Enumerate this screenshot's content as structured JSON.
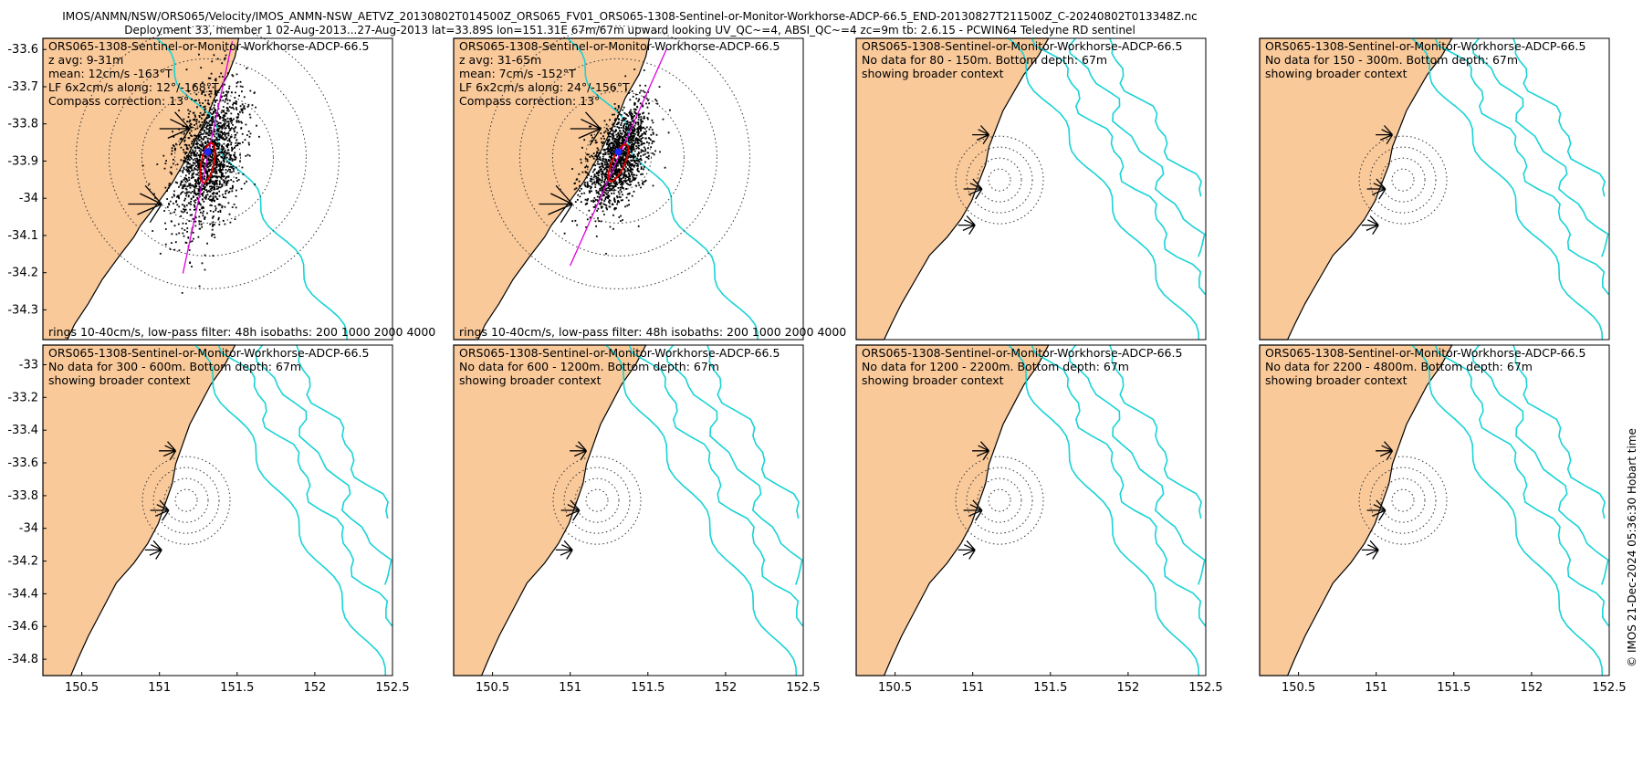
{
  "header": {
    "line1": "IMOS/ANMN/NSW/ORS065/Velocity/IMOS_ANMN-NSW_AETVZ_20130802T014500Z_ORS065_FV01_ORS065-1308-Sentinel-or-Monitor-Workhorse-ADCP-66.5_END-20130827T211500Z_C-20240802T013348Z.nc",
    "line2": "Deployment 33, member 1 02-Aug-2013...27-Aug-2013 lat=33.89S lon=151.31E 67m/67m upward looking UV_QC~=4, ABSI_QC~=4 zc=9m tb: 2.6.15 - PCWIN64 Teledyne RD sentinel"
  },
  "copyright": "© IMOS 21-Dec-2024 05:36:30 Hobart time",
  "colors": {
    "land": "#f9c99a",
    "isobath": "#19d3d6",
    "scatter": "#000000",
    "principal_axis": "#e000e0",
    "ellipse": "#e00000",
    "mean": "#1a2bff",
    "rings": "#333333"
  },
  "chart_data": [
    {
      "type": "scatter",
      "panel": "top-1",
      "title": "ORS065-1308-Sentinel-or-Monitor-Workhorse-ADCP-66.5",
      "info": [
        "z avg: 9-31m",
        "mean: 12cm/s -163°T",
        "LF 6x2cm/s along: 12°/-168°T",
        "Compass correction: 13°"
      ],
      "footer": "rings 10-40cm/s, low-pass filter: 48h isobaths: 200 1000 2000 4000",
      "yticks": [
        -33.6,
        -33.7,
        -33.8,
        -33.9,
        -34,
        -34.1,
        -34.2,
        -34.3
      ],
      "ylim": [
        -34.38,
        -33.57
      ],
      "xlim": [
        150.25,
        152.5
      ],
      "site": [
        151.31,
        -33.89
      ],
      "rings_cm_s": [
        10,
        20,
        30,
        40
      ],
      "axis_bearing_deg": 12,
      "mean_cm_s": 12,
      "mean_dir_deg": -163,
      "depth": "9-31m"
    },
    {
      "type": "scatter",
      "panel": "top-2",
      "title": "ORS065-1308-Sentinel-or-Monitor-Workhorse-ADCP-66.5",
      "info": [
        "z avg: 31-65m",
        "mean: 7cm/s -152°T",
        "LF 6x2cm/s along: 24°/-156°T",
        "Compass correction: 13°"
      ],
      "footer": "rings 10-40cm/s, low-pass filter: 48h isobaths: 200 1000 2000 4000",
      "ylim": [
        -34.38,
        -33.57
      ],
      "xlim": [
        150.25,
        152.5
      ],
      "site": [
        151.31,
        -33.89
      ],
      "rings_cm_s": [
        10,
        20,
        30,
        40
      ],
      "axis_bearing_deg": 24,
      "mean_cm_s": 7,
      "mean_dir_deg": -152,
      "depth": "31-65m"
    },
    {
      "type": "map",
      "panel": "top-3",
      "title": "ORS065-1308-Sentinel-or-Monitor-Workhorse-ADCP-66.5",
      "info": [
        "No data for 80 - 150m. Bottom depth: 67m",
        "showing broader context"
      ],
      "range": "80 - 150m"
    },
    {
      "type": "map",
      "panel": "top-4",
      "title": "ORS065-1308-Sentinel-or-Monitor-Workhorse-ADCP-66.5",
      "info": [
        "No data for 150 - 300m. Bottom depth: 67m",
        "showing broader context"
      ],
      "range": "150 - 300m"
    },
    {
      "type": "map",
      "panel": "bottom-1",
      "title": "ORS065-1308-Sentinel-or-Monitor-Workhorse-ADCP-66.5",
      "info": [
        "No data for 300 - 600m. Bottom depth: 67m",
        "showing broader context"
      ],
      "yticks": [
        -33,
        -33.2,
        -33.4,
        -33.6,
        -33.8,
        -34,
        -34.2,
        -34.4,
        -34.6,
        -34.8
      ],
      "xticks": [
        150.5,
        151,
        151.5,
        152,
        152.5
      ],
      "range": "300 - 600m"
    },
    {
      "type": "map",
      "panel": "bottom-2",
      "title": "ORS065-1308-Sentinel-or-Monitor-Workhorse-ADCP-66.5",
      "info": [
        "No data for 600 - 1200m. Bottom depth: 67m",
        "showing broader context"
      ],
      "xticks": [
        150.5,
        151,
        151.5,
        152,
        152.5
      ],
      "range": "600 - 1200m"
    },
    {
      "type": "map",
      "panel": "bottom-3",
      "title": "ORS065-1308-Sentinel-or-Monitor-Workhorse-ADCP-66.5",
      "info": [
        "No data for 1200 - 2200m. Bottom depth: 67m",
        "showing broader context"
      ],
      "xticks": [
        150.5,
        151,
        151.5,
        152,
        152.5
      ],
      "range": "1200 - 2200m"
    },
    {
      "type": "map",
      "panel": "bottom-4",
      "title": "ORS065-1308-Sentinel-or-Monitor-Workhorse-ADCP-66.5",
      "info": [
        "No data for 2200 - 4800m. Bottom depth: 67m",
        "showing broader context"
      ],
      "xticks": [
        150.5,
        151,
        151.5,
        152,
        152.5
      ],
      "range": "2200 - 4800m"
    }
  ]
}
